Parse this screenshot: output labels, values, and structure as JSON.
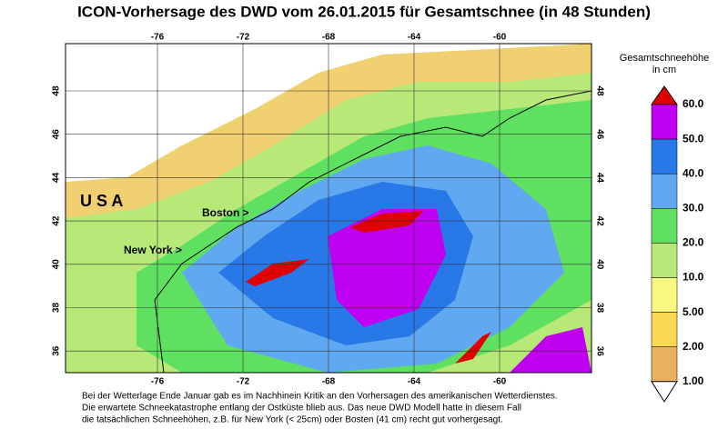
{
  "title": "ICON-Vorhersage des DWD vom 26.01.2015 für Gesamtschnee (in 48 Stunden)",
  "legend": {
    "title": "Gesamtschneehöhe",
    "unit": "in cm",
    "labels": [
      "60.0",
      "50.0",
      "40.0",
      "30.0",
      "20.0",
      "10.0",
      "5.00",
      "2.00",
      "1.00"
    ]
  },
  "map": {
    "longitudes": [
      "-76",
      "-72",
      "-68",
      "-64",
      "-60"
    ],
    "latitudes": [
      "48",
      "46",
      "44",
      "42",
      "40",
      "38",
      "36"
    ],
    "labels": {
      "country": "U S A",
      "boston": "Boston >",
      "new_york": "New York >"
    }
  },
  "footer": [
    "Bei der Wetterlage Ende Januar gab es im Nachhinein Kritik an den Vorhersagen des amerikanischen Wetterdienstes.",
    "Die erwartete Schneekatastrophe entlang der Ostküste blieb aus. Das neue DWD Modell hatte in diesem Fall",
    "die tatsächlichen Schneehöhen, z.B. für New York (< 25cm) oder Bosten (41 cm) recht gut vorhergesagt."
  ]
}
